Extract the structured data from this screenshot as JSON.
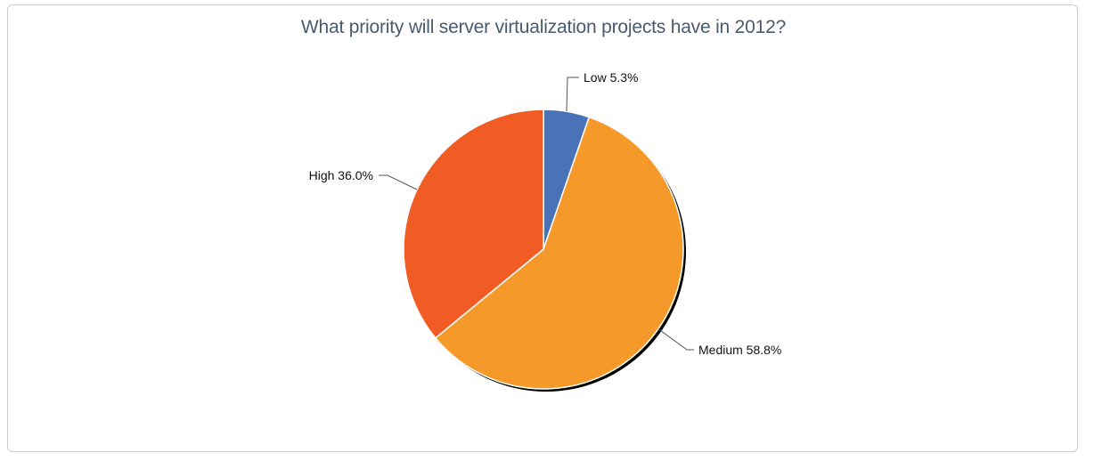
{
  "chart_data": {
    "type": "pie",
    "title": "What priority will server virtualization projects have in 2012?",
    "slices": [
      {
        "name": "Low",
        "value": 5.3,
        "label": "Low 5.3%",
        "color": "#4a72b8"
      },
      {
        "name": "Medium",
        "value": 58.8,
        "label": "Medium 58.8%",
        "color": "#f59a2a"
      },
      {
        "name": "High",
        "value": 36.0,
        "label": "High 36.0%",
        "color": "#f05c24"
      }
    ],
    "start_angle": "12 o'clock",
    "direction": "clockwise",
    "legend": "none",
    "labels": "outside with leader lines"
  }
}
